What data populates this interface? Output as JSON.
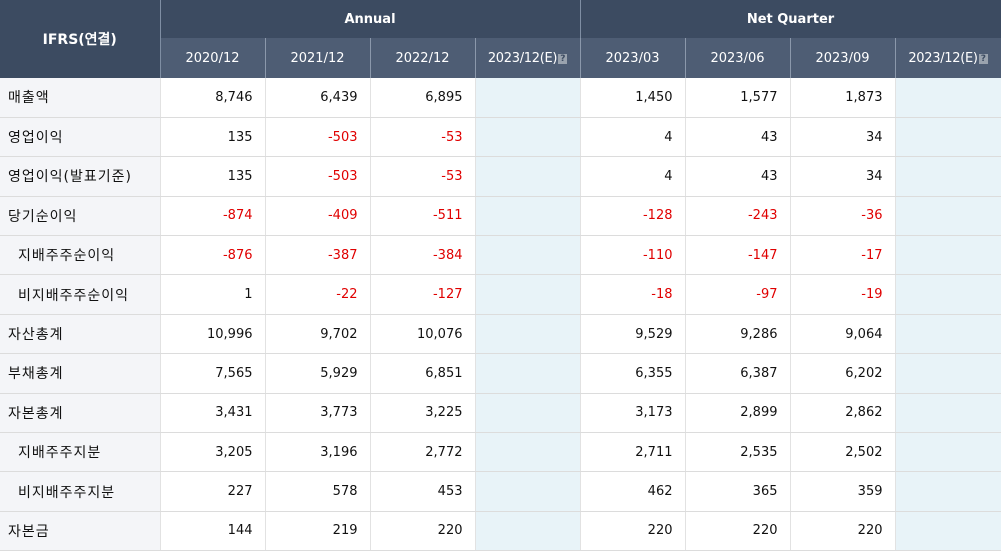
{
  "header": {
    "corner_label": "IFRS(연결)",
    "group_annual": "Annual",
    "group_quarter": "Net Quarter",
    "columns": [
      "2020/12",
      "2021/12",
      "2022/12",
      "2023/12(E)",
      "2023/03",
      "2023/06",
      "2023/09",
      "2023/12(E)"
    ],
    "estimate_icon": "?"
  },
  "rows": [
    {
      "label": "매출액",
      "indent": false,
      "values": [
        "8,746",
        "6,439",
        "6,895",
        "",
        "1,450",
        "1,577",
        "1,873",
        ""
      ]
    },
    {
      "label": "영업이익",
      "indent": false,
      "values": [
        "135",
        "-503",
        "-53",
        "",
        "4",
        "43",
        "34",
        ""
      ]
    },
    {
      "label": "영업이익(발표기준)",
      "indent": false,
      "values": [
        "135",
        "-503",
        "-53",
        "",
        "4",
        "43",
        "34",
        ""
      ]
    },
    {
      "label": "당기순이익",
      "indent": false,
      "values": [
        "-874",
        "-409",
        "-511",
        "",
        "-128",
        "-243",
        "-36",
        ""
      ]
    },
    {
      "label": "지배주주순이익",
      "indent": true,
      "values": [
        "-876",
        "-387",
        "-384",
        "",
        "-110",
        "-147",
        "-17",
        ""
      ]
    },
    {
      "label": "비지배주주순이익",
      "indent": true,
      "values": [
        "1",
        "-22",
        "-127",
        "",
        "-18",
        "-97",
        "-19",
        ""
      ]
    },
    {
      "label": "자산총계",
      "indent": false,
      "values": [
        "10,996",
        "9,702",
        "10,076",
        "",
        "9,529",
        "9,286",
        "9,064",
        ""
      ]
    },
    {
      "label": "부채총계",
      "indent": false,
      "values": [
        "7,565",
        "5,929",
        "6,851",
        "",
        "6,355",
        "6,387",
        "6,202",
        ""
      ]
    },
    {
      "label": "자본총계",
      "indent": false,
      "values": [
        "3,431",
        "3,773",
        "3,225",
        "",
        "3,173",
        "2,899",
        "2,862",
        ""
      ]
    },
    {
      "label": "지배주주지분",
      "indent": true,
      "values": [
        "3,205",
        "3,196",
        "2,772",
        "",
        "2,711",
        "2,535",
        "2,502",
        ""
      ]
    },
    {
      "label": "비지배주주지분",
      "indent": true,
      "values": [
        "227",
        "578",
        "453",
        "",
        "462",
        "365",
        "359",
        ""
      ]
    },
    {
      "label": "자본금",
      "indent": false,
      "values": [
        "144",
        "219",
        "220",
        "",
        "220",
        "220",
        "220",
        ""
      ]
    }
  ],
  "colors": {
    "header_dark": "#3c4b61",
    "header_sub": "#4e5d74",
    "negative": "#e00000",
    "estimate_bg": "#e8f3f8",
    "label_bg": "#f4f5f8"
  }
}
